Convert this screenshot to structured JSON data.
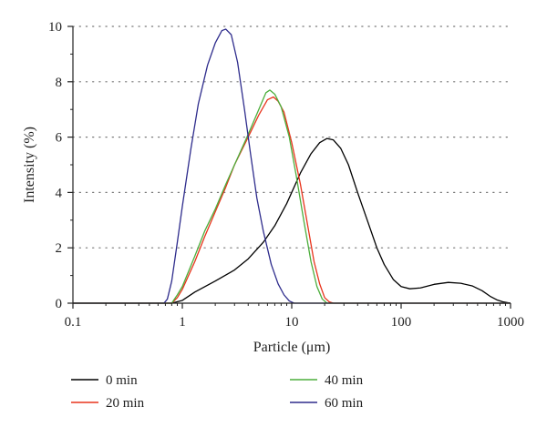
{
  "chart_data": {
    "type": "line",
    "title": "",
    "xlabel": "Particle (μm)",
    "ylabel": "Intensity (%)",
    "xscale": "log",
    "xlim": [
      0.1,
      1000
    ],
    "ylim": [
      0,
      10
    ],
    "x_ticks": [
      0.1,
      1,
      10,
      100,
      1000
    ],
    "x_tick_labels": [
      "0.1",
      "1",
      "10",
      "100",
      "1000"
    ],
    "y_ticks": [
      0,
      2,
      4,
      6,
      8,
      10
    ],
    "y_tick_labels": [
      "0",
      "2",
      "4",
      "6",
      "8",
      "10"
    ],
    "grid": "horizontal dotted",
    "legend_position": "bottom",
    "series": [
      {
        "name": "0 min",
        "color": "#000000",
        "points": [
          [
            0.1,
            0
          ],
          [
            0.8,
            0
          ],
          [
            1.0,
            0.1
          ],
          [
            1.3,
            0.4
          ],
          [
            2.0,
            0.8
          ],
          [
            3.0,
            1.2
          ],
          [
            4.0,
            1.6
          ],
          [
            5.5,
            2.2
          ],
          [
            7.0,
            2.8
          ],
          [
            9.0,
            3.6
          ],
          [
            12.0,
            4.7
          ],
          [
            15.0,
            5.4
          ],
          [
            18.0,
            5.8
          ],
          [
            21.0,
            5.95
          ],
          [
            24.0,
            5.9
          ],
          [
            28.0,
            5.6
          ],
          [
            33.0,
            5.0
          ],
          [
            40.0,
            4.0
          ],
          [
            50.0,
            2.9
          ],
          [
            60.0,
            2.0
          ],
          [
            70.0,
            1.4
          ],
          [
            85.0,
            0.85
          ],
          [
            100.0,
            0.6
          ],
          [
            120.0,
            0.52
          ],
          [
            150.0,
            0.55
          ],
          [
            200.0,
            0.68
          ],
          [
            270.0,
            0.75
          ],
          [
            350.0,
            0.72
          ],
          [
            450.0,
            0.62
          ],
          [
            550.0,
            0.45
          ],
          [
            650.0,
            0.25
          ],
          [
            750.0,
            0.12
          ],
          [
            850.0,
            0.05
          ],
          [
            1000.0,
            0
          ]
        ]
      },
      {
        "name": "20 min",
        "color": "#e8341c",
        "points": [
          [
            0.1,
            0
          ],
          [
            0.8,
            0
          ],
          [
            0.9,
            0.2
          ],
          [
            1.0,
            0.5
          ],
          [
            1.3,
            1.5
          ],
          [
            1.6,
            2.4
          ],
          [
            2.0,
            3.3
          ],
          [
            2.5,
            4.2
          ],
          [
            3.0,
            5.0
          ],
          [
            4.0,
            6.0
          ],
          [
            5.0,
            6.8
          ],
          [
            6.0,
            7.35
          ],
          [
            6.8,
            7.45
          ],
          [
            7.5,
            7.3
          ],
          [
            8.5,
            6.9
          ],
          [
            10.0,
            5.8
          ],
          [
            12.0,
            4.3
          ],
          [
            14.0,
            2.8
          ],
          [
            16.0,
            1.5
          ],
          [
            18.0,
            0.7
          ],
          [
            20.0,
            0.2
          ],
          [
            22.0,
            0.05
          ],
          [
            24.0,
            0
          ],
          [
            1000.0,
            0
          ]
        ]
      },
      {
        "name": "40 min",
        "color": "#4cae3c",
        "points": [
          [
            0.1,
            0
          ],
          [
            0.8,
            0
          ],
          [
            0.9,
            0.3
          ],
          [
            1.0,
            0.6
          ],
          [
            1.3,
            1.7
          ],
          [
            1.6,
            2.6
          ],
          [
            2.0,
            3.4
          ],
          [
            2.5,
            4.3
          ],
          [
            3.0,
            5.0
          ],
          [
            4.0,
            6.1
          ],
          [
            5.0,
            7.0
          ],
          [
            5.8,
            7.6
          ],
          [
            6.3,
            7.7
          ],
          [
            7.0,
            7.55
          ],
          [
            8.0,
            7.1
          ],
          [
            9.5,
            6.0
          ],
          [
            11.0,
            4.6
          ],
          [
            13.0,
            2.9
          ],
          [
            15.0,
            1.5
          ],
          [
            17.0,
            0.6
          ],
          [
            19.0,
            0.15
          ],
          [
            21.0,
            0
          ],
          [
            1000.0,
            0
          ]
        ]
      },
      {
        "name": "60 min",
        "color": "#2e2c8c",
        "points": [
          [
            0.1,
            0
          ],
          [
            0.68,
            0
          ],
          [
            0.73,
            0.15
          ],
          [
            0.8,
            0.8
          ],
          [
            0.9,
            2.2
          ],
          [
            1.0,
            3.5
          ],
          [
            1.2,
            5.6
          ],
          [
            1.4,
            7.2
          ],
          [
            1.7,
            8.6
          ],
          [
            2.0,
            9.4
          ],
          [
            2.3,
            9.85
          ],
          [
            2.5,
            9.9
          ],
          [
            2.8,
            9.7
          ],
          [
            3.2,
            8.7
          ],
          [
            3.7,
            7.0
          ],
          [
            4.2,
            5.4
          ],
          [
            4.8,
            3.8
          ],
          [
            5.5,
            2.6
          ],
          [
            6.5,
            1.4
          ],
          [
            7.5,
            0.7
          ],
          [
            8.5,
            0.3
          ],
          [
            9.5,
            0.08
          ],
          [
            10.5,
            0
          ],
          [
            1000.0,
            0
          ]
        ]
      }
    ]
  }
}
